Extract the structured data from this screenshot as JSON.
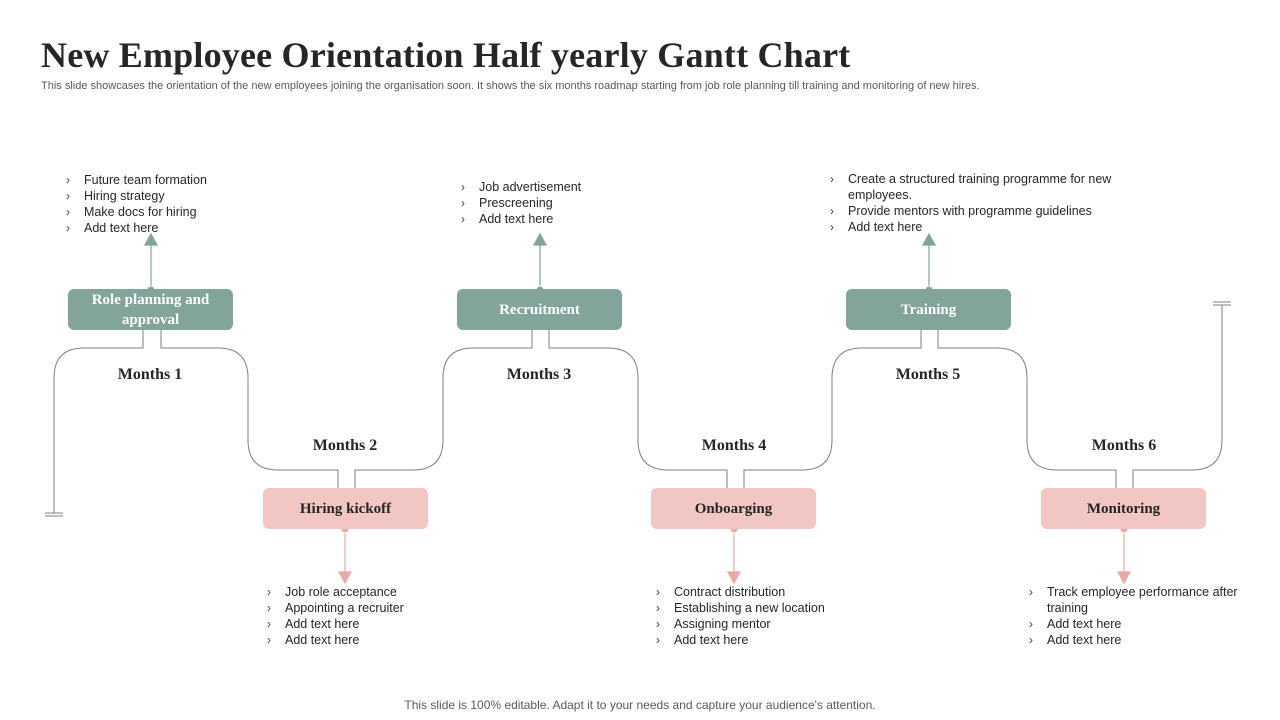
{
  "title": "New Employee Orientation Half yearly Gantt Chart",
  "subtitle": "This slide showcases the  orientation of the new employees joining the organisation soon. It shows the six months roadmap starting from job role planning till training and monitoring of new hires.",
  "footer": "This slide is 100% editable. Adapt it to your needs and capture your audience's attention.",
  "colors": {
    "green": "#82a49b",
    "pink": "#f2c6c2",
    "line": "#7f7f7f"
  },
  "phases": [
    {
      "month": "Months 1",
      "stage": "Role planning  and approval",
      "points": [
        "Future team formation",
        "Hiring strategy",
        "Make docs for hiring",
        "Add text here"
      ]
    },
    {
      "month": "Months 2",
      "stage": "Hiring  kickoff",
      "points": [
        "Job role acceptance",
        "Appointing a recruiter",
        "Add text here",
        "Add text here"
      ]
    },
    {
      "month": "Months 3",
      "stage": "Recruitment",
      "points": [
        "Job advertisement",
        "Prescreening",
        "Add text here"
      ]
    },
    {
      "month": "Months 4",
      "stage": "Onboarging",
      "points": [
        "Contract distribution",
        "Establishing a new location",
        "Assigning mentor",
        "Add text here"
      ]
    },
    {
      "month": "Months 5",
      "stage": "Training",
      "points": [
        "Create a structured training programme  for new employees.",
        "Provide  mentors with programme guidelines",
        "Add text here"
      ]
    },
    {
      "month": "Months 6",
      "stage": "Monitoring",
      "points": [
        "Track employee performance after training",
        "Add text here",
        "Add text here"
      ]
    }
  ]
}
